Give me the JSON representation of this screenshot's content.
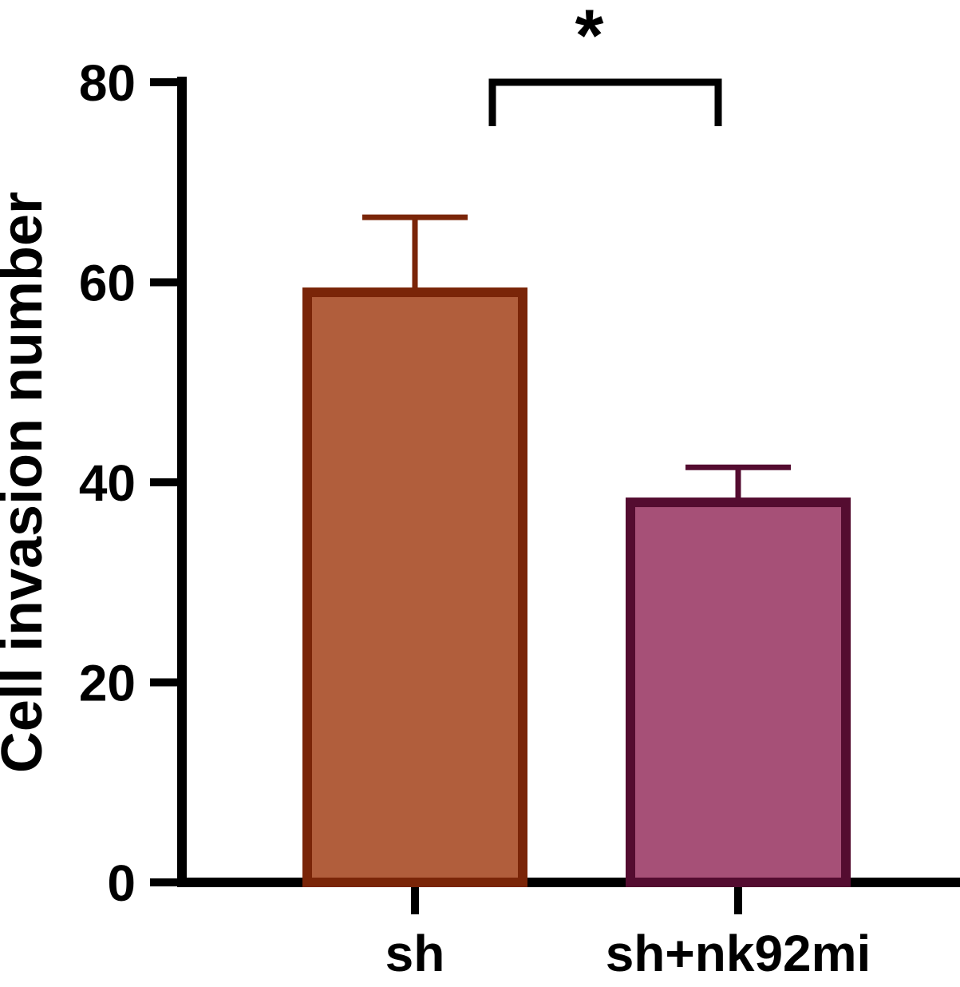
{
  "chart_data": {
    "type": "bar",
    "title": "",
    "categories": [
      "sh",
      "sh+nk92mi"
    ],
    "values": [
      59,
      38
    ],
    "errors": [
      7.5,
      3.5
    ],
    "error_bar_style": "upper-only",
    "bar_colors": [
      "#b15e3c",
      "#a65077"
    ],
    "bar_border_colors": [
      "#7a2508",
      "#540c30"
    ],
    "axis_color": "#000000",
    "xlabel": "",
    "ylabel": "Cell invasion number",
    "ylim": [
      0,
      80
    ],
    "yticks": [
      0,
      20,
      40,
      60,
      80
    ],
    "grid": false,
    "legend": "none",
    "significance": {
      "label": "*",
      "between": [
        "sh",
        "sh+nk92mi"
      ]
    }
  }
}
